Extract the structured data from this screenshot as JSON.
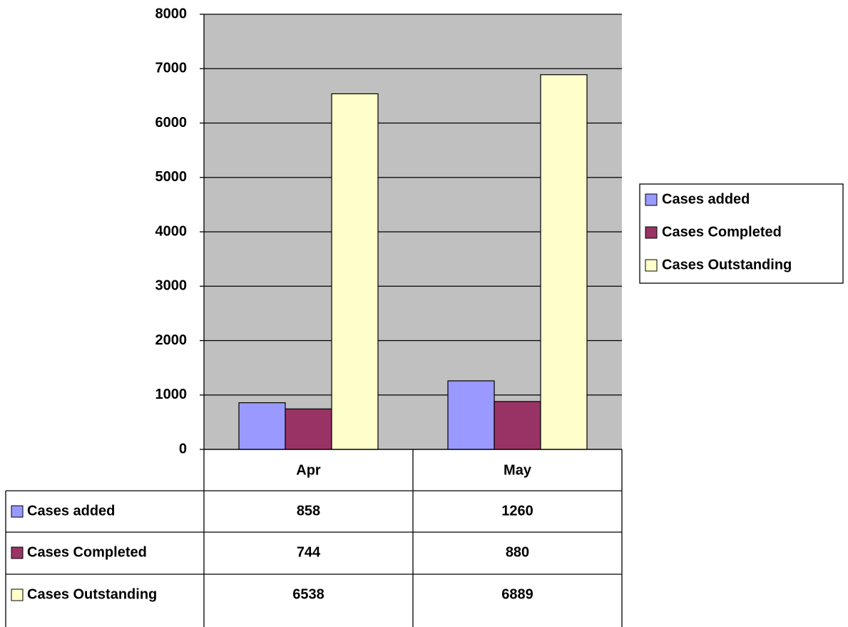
{
  "chart_data": {
    "type": "bar",
    "categories": [
      "Apr",
      "May"
    ],
    "series": [
      {
        "name": "Cases added",
        "color": "#9999ff",
        "values": [
          858,
          1260
        ]
      },
      {
        "name": "Cases Completed",
        "color": "#993366",
        "values": [
          744,
          880
        ]
      },
      {
        "name": "Cases Outstanding",
        "color": "#ffffcc",
        "values": [
          6538,
          6889
        ]
      }
    ],
    "ylim": [
      0,
      8000
    ],
    "yticks": [
      0,
      1000,
      2000,
      3000,
      4000,
      5000,
      6000,
      7000,
      8000
    ],
    "grid": true,
    "legend": "right",
    "plot_background": "#c0c0c0"
  }
}
